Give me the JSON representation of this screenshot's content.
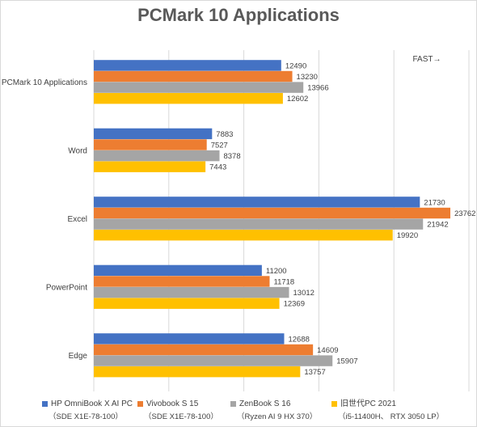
{
  "chart_data": {
    "type": "bar",
    "orientation": "horizontal",
    "title": "PCMark 10 Applications",
    "annotation": "FAST→",
    "categories": [
      "PCMark 10 Applications",
      "Word",
      "Excel",
      "PowerPoint",
      "Edge"
    ],
    "xlim": [
      0,
      25000
    ],
    "grid": true,
    "legend_position": "bottom",
    "series": [
      {
        "name": "HP OmniBook X AI PC",
        "note": "（SDE X1E-78-100）",
        "color": "#4472c4",
        "values": [
          12490,
          7883,
          21730,
          11200,
          12688
        ]
      },
      {
        "name": "Vivobook S 15",
        "note": "（SDE X1E-78-100）",
        "color": "#ed7d31",
        "values": [
          13230,
          7527,
          23762,
          11718,
          14609
        ]
      },
      {
        "name": "ZenBook S 16",
        "note": "（Ryzen AI 9 HX 370）",
        "color": "#a5a5a5",
        "values": [
          13966,
          8378,
          21942,
          13012,
          15907
        ]
      },
      {
        "name": "旧世代PC 2021",
        "note": "（i5-11400H、 RTX 3050 LP）",
        "color": "#ffc000",
        "values": [
          12602,
          7443,
          19920,
          12369,
          13757
        ]
      }
    ]
  }
}
